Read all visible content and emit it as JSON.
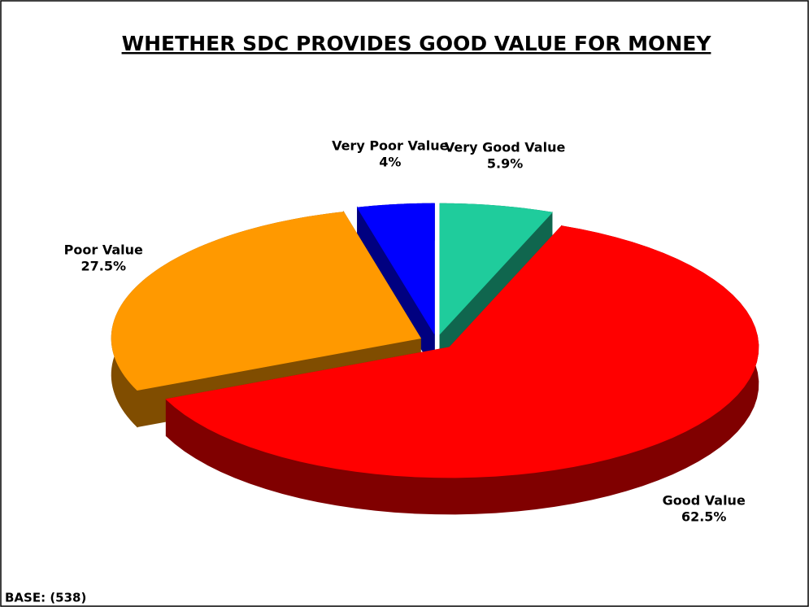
{
  "chart_data": {
    "type": "pie",
    "title": "WHETHER SDC PROVIDES GOOD VALUE FOR MONEY",
    "categories": [
      "Very Good Value",
      "Good Value",
      "Poor Value",
      "Very Poor Value"
    ],
    "values": [
      5.9,
      62.5,
      27.5,
      4
    ],
    "value_labels": [
      "5.9%",
      "62.5%",
      "27.5%",
      "4%"
    ],
    "colors": [
      "#1fcc9c",
      "#ff0000",
      "#ff9900",
      "#0000ff"
    ],
    "footnote": "BASE: (538)"
  }
}
